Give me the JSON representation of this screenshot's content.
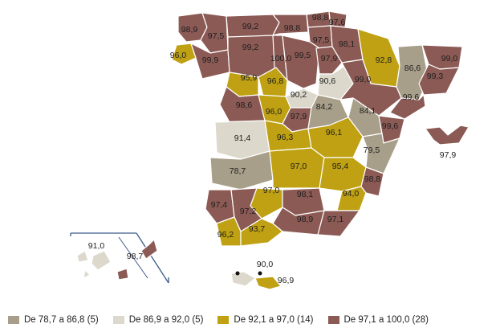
{
  "colors": {
    "class1": "#a89f8a",
    "class2": "#dcd8cb",
    "class3": "#bfa113",
    "class4": "#8b5a55",
    "inset_frame": "#3c5a8c"
  },
  "legend": [
    {
      "label": "De 78,7 a 86,8 (5)",
      "class": "class1"
    },
    {
      "label": "De 86,9 a 92,0 (5)",
      "class": "class2"
    },
    {
      "label": "De 92,1 a 97,0 (14)",
      "class": "class3"
    },
    {
      "label": "De 97,1 a 100,0 (28)",
      "class": "class4"
    }
  ],
  "provinces": [
    {
      "name": "A Coruña",
      "value": "98,9",
      "class": "class4"
    },
    {
      "name": "Lugo",
      "value": "97,5",
      "class": "class4"
    },
    {
      "name": "Asturias",
      "value": "99,2",
      "class": "class4"
    },
    {
      "name": "Cantabria",
      "value": "98,8",
      "class": "class4"
    },
    {
      "name": "Bizkaia",
      "value": "98,8",
      "class": "class4"
    },
    {
      "name": "Gipuzkoa",
      "value": "97,6",
      "class": "class4"
    },
    {
      "name": "Álava",
      "value": "97,5",
      "class": "class4"
    },
    {
      "name": "Navarra",
      "value": "98,1",
      "class": "class4"
    },
    {
      "name": "Pontevedra",
      "value": "96,0",
      "class": "class3"
    },
    {
      "name": "Ourense",
      "value": "99,9",
      "class": "class4"
    },
    {
      "name": "León",
      "value": "99,2",
      "class": "class4"
    },
    {
      "name": "Palencia",
      "value": "100,0",
      "class": "class4"
    },
    {
      "name": "Burgos",
      "value": "99,5",
      "class": "class4"
    },
    {
      "name": "La Rioja",
      "value": "97,9",
      "class": "class4"
    },
    {
      "name": "Huesca",
      "value": "92,8",
      "class": "class3"
    },
    {
      "name": "Lleida",
      "value": "86,6",
      "class": "class1"
    },
    {
      "name": "Girona",
      "value": "99,0",
      "class": "class4"
    },
    {
      "name": "Barcelona",
      "value": "99,3",
      "class": "class4"
    },
    {
      "name": "Zamora",
      "value": "95,9",
      "class": "class3"
    },
    {
      "name": "Valladolid",
      "value": "96,8",
      "class": "class3"
    },
    {
      "name": "Soria",
      "value": "90,6",
      "class": "class2"
    },
    {
      "name": "Zaragoza",
      "value": "99,0",
      "class": "class4"
    },
    {
      "name": "Tarragona",
      "value": "99,6",
      "class": "class4"
    },
    {
      "name": "Segovia",
      "value": "90,2",
      "class": "class2"
    },
    {
      "name": "Salamanca",
      "value": "98,6",
      "class": "class4"
    },
    {
      "name": "Ávila",
      "value": "96,0",
      "class": "class3"
    },
    {
      "name": "Madrid",
      "value": "97,9",
      "class": "class4"
    },
    {
      "name": "Guadalajara",
      "value": "84,2",
      "class": "class1"
    },
    {
      "name": "Teruel",
      "value": "84,1",
      "class": "class1"
    },
    {
      "name": "Castellón",
      "value": "99,6",
      "class": "class4"
    },
    {
      "name": "Cáceres",
      "value": "91,4",
      "class": "class2"
    },
    {
      "name": "Toledo",
      "value": "96,3",
      "class": "class3"
    },
    {
      "name": "Cuenca",
      "value": "96,1",
      "class": "class3"
    },
    {
      "name": "Valencia",
      "value": "79,5",
      "class": "class1"
    },
    {
      "name": "Badajoz",
      "value": "78,7",
      "class": "class1"
    },
    {
      "name": "Ciudad Real",
      "value": "97,0",
      "class": "class3"
    },
    {
      "name": "Albacete",
      "value": "95,4",
      "class": "class3"
    },
    {
      "name": "Alicante",
      "value": "98,8",
      "class": "class4"
    },
    {
      "name": "Córdoba",
      "value": "97,0",
      "class": "class3"
    },
    {
      "name": "Jaén",
      "value": "98,1",
      "class": "class4"
    },
    {
      "name": "Murcia",
      "value": "94,0",
      "class": "class3"
    },
    {
      "name": "Huelva",
      "value": "97,4",
      "class": "class4"
    },
    {
      "name": "Sevilla",
      "value": "97,2",
      "class": "class4"
    },
    {
      "name": "Granada",
      "value": "98,9",
      "class": "class4"
    },
    {
      "name": "Almería",
      "value": "97,1",
      "class": "class4"
    },
    {
      "name": "Cádiz",
      "value": "96,2",
      "class": "class3"
    },
    {
      "name": "Málaga",
      "value": "93,7",
      "class": "class3"
    },
    {
      "name": "Illes Balears",
      "value": "97,9",
      "class": "class4"
    },
    {
      "name": "Santa Cruz de Tenerife",
      "value": "91,0",
      "class": "class2"
    },
    {
      "name": "Las Palmas",
      "value": "98,7",
      "class": "class4"
    },
    {
      "name": "Ceuta",
      "value": "90,0",
      "class": "class2"
    },
    {
      "name": "Melilla",
      "value": "96,9",
      "class": "class3"
    }
  ]
}
